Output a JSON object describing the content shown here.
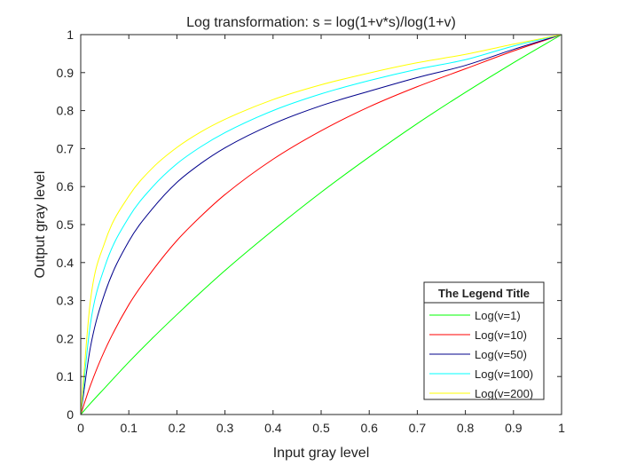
{
  "chart_data": {
    "type": "line",
    "title": "Log transformation: s = log(1+v*s)/log(1+v)",
    "xlabel": "Input gray level",
    "ylabel": "Output gray level",
    "xlim": [
      0,
      1
    ],
    "ylim": [
      0,
      1
    ],
    "x_ticks": [
      "0",
      "0.1",
      "0.2",
      "0.3",
      "0.4",
      "0.5",
      "0.6",
      "0.7",
      "0.8",
      "0.9",
      "1"
    ],
    "y_ticks": [
      "0",
      "0.1",
      "0.2",
      "0.3",
      "0.4",
      "0.5",
      "0.6",
      "0.7",
      "0.8",
      "0.9",
      "1"
    ],
    "grid": false,
    "legend": {
      "title": "The Legend Title",
      "location": "bottom-right"
    },
    "x": [
      0,
      0.02,
      0.05,
      0.1,
      0.15,
      0.2,
      0.25,
      0.3,
      0.4,
      0.5,
      0.6,
      0.7,
      0.8,
      0.9,
      1.0
    ],
    "series": [
      {
        "name": "Log(v=1)",
        "color": "#00ff00",
        "values": [
          0,
          0.029,
          0.07,
          0.138,
          0.202,
          0.263,
          0.322,
          0.379,
          0.485,
          0.585,
          0.678,
          0.766,
          0.848,
          0.926,
          1.0
        ]
      },
      {
        "name": "Log(v=10)",
        "color": "#ff0000",
        "values": [
          0,
          0.076,
          0.169,
          0.289,
          0.38,
          0.458,
          0.522,
          0.579,
          0.672,
          0.747,
          0.81,
          0.863,
          0.91,
          0.957,
          1.0
        ]
      },
      {
        "name": "Log(v=50)",
        "color": "#00008b",
        "values": [
          0,
          0.176,
          0.319,
          0.456,
          0.543,
          0.611,
          0.661,
          0.702,
          0.765,
          0.813,
          0.851,
          0.887,
          0.919,
          0.961,
          1.0
        ]
      },
      {
        "name": "Log(v=100)",
        "color": "#00ffff",
        "values": [
          0,
          0.237,
          0.389,
          0.519,
          0.6,
          0.66,
          0.705,
          0.742,
          0.8,
          0.844,
          0.879,
          0.909,
          0.934,
          0.97,
          1.0
        ]
      },
      {
        "name": "Log(v=200)",
        "color": "#ffff00",
        "values": [
          0,
          0.298,
          0.453,
          0.575,
          0.65,
          0.703,
          0.744,
          0.777,
          0.829,
          0.868,
          0.899,
          0.926,
          0.948,
          0.975,
          1.0
        ]
      }
    ]
  }
}
